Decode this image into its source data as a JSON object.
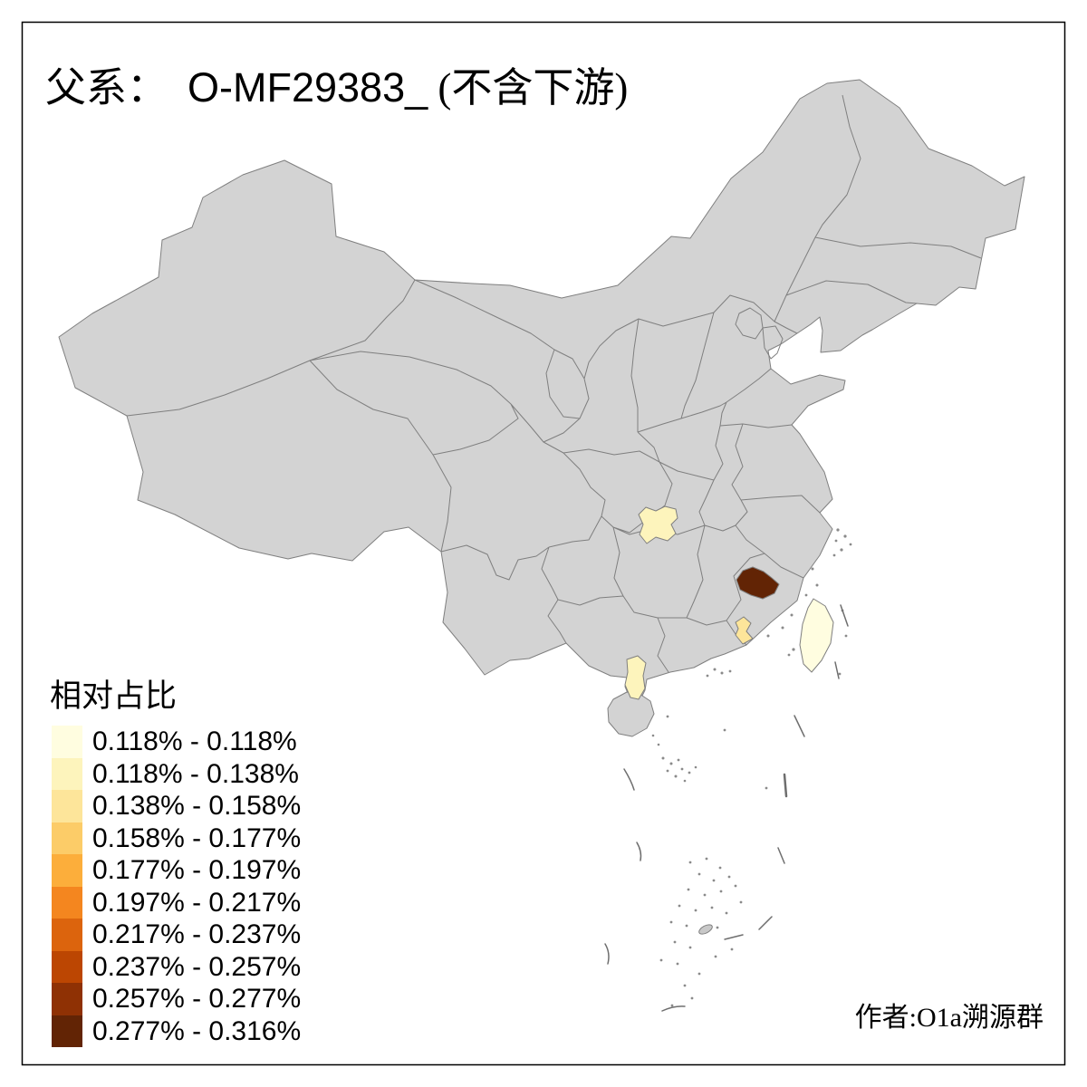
{
  "title": {
    "prefix": "父系：",
    "haplogroup": "O-MF29383_",
    "suffix": " (不含下游)"
  },
  "legend": {
    "title": "相对占比",
    "items": [
      {
        "label": "0.118% - 0.118%",
        "color": "#FFFDE0"
      },
      {
        "label": "0.118% - 0.138%",
        "color": "#FDF4BC"
      },
      {
        "label": "0.138% - 0.158%",
        "color": "#FDE59A"
      },
      {
        "label": "0.158% - 0.177%",
        "color": "#FCCC68"
      },
      {
        "label": "0.177% - 0.197%",
        "color": "#FCAE3B"
      },
      {
        "label": "0.197% - 0.217%",
        "color": "#F4861F"
      },
      {
        "label": "0.217% - 0.237%",
        "color": "#DC640D"
      },
      {
        "label": "0.237% - 0.257%",
        "color": "#BC4602"
      },
      {
        "label": "0.257% - 0.277%",
        "color": "#8F3104"
      },
      {
        "label": "0.277% - 0.316%",
        "color": "#622405"
      }
    ]
  },
  "attribution": "作者:O1a溯源群",
  "map": {
    "land_color": "#D3D3D3",
    "border_color": "#7F7F7F",
    "background": "#FFFFFF",
    "frame_color": "#000000",
    "island_dot_color": "#8A8A8A",
    "dash_line_color": "#6E6E6E"
  },
  "chart_data": {
    "type": "choropleth-map",
    "title": "父系： O-MF29383_ (不含下游)",
    "region_scope": "China, province outlines with prefecture-level highlighted areas",
    "measure": "相对占比 (relative share of paternal lineage O-MF29383_, downstream excluded)",
    "legend_position": "bottom-left",
    "classes": [
      {
        "range": "0.118% - 0.118%",
        "color": "#FFFDE0"
      },
      {
        "range": "0.118% - 0.138%",
        "color": "#FDF4BC"
      },
      {
        "range": "0.138% - 0.158%",
        "color": "#FDE59A"
      },
      {
        "range": "0.158% - 0.177%",
        "color": "#FCCC68"
      },
      {
        "range": "0.177% - 0.197%",
        "color": "#FCAE3B"
      },
      {
        "range": "0.197% - 0.217%",
        "color": "#F4861F"
      },
      {
        "range": "0.217% - 0.237%",
        "color": "#DC640D"
      },
      {
        "range": "0.237% - 0.257%",
        "color": "#BC4602"
      },
      {
        "range": "0.257% - 0.277%",
        "color": "#8F3104"
      },
      {
        "range": "0.277% - 0.316%",
        "color": "#622405"
      }
    ],
    "highlighted_regions": [
      {
        "id": "taiwan",
        "class_index": 0,
        "range": "0.118% - 0.118%"
      },
      {
        "id": "central-inland-prefecture",
        "class_index": 1,
        "range": "0.118% - 0.138%"
      },
      {
        "id": "leizhou-peninsula-prefecture",
        "class_index": 1,
        "range": "0.118% - 0.138%"
      },
      {
        "id": "southeast-coastal-prefecture",
        "class_index": 2,
        "range": "0.138% - 0.158%"
      },
      {
        "id": "southeast-inland-prefecture",
        "class_index": 9,
        "range": "0.277% - 0.316%"
      }
    ],
    "all_other_regions": "no data (gray fill)"
  }
}
